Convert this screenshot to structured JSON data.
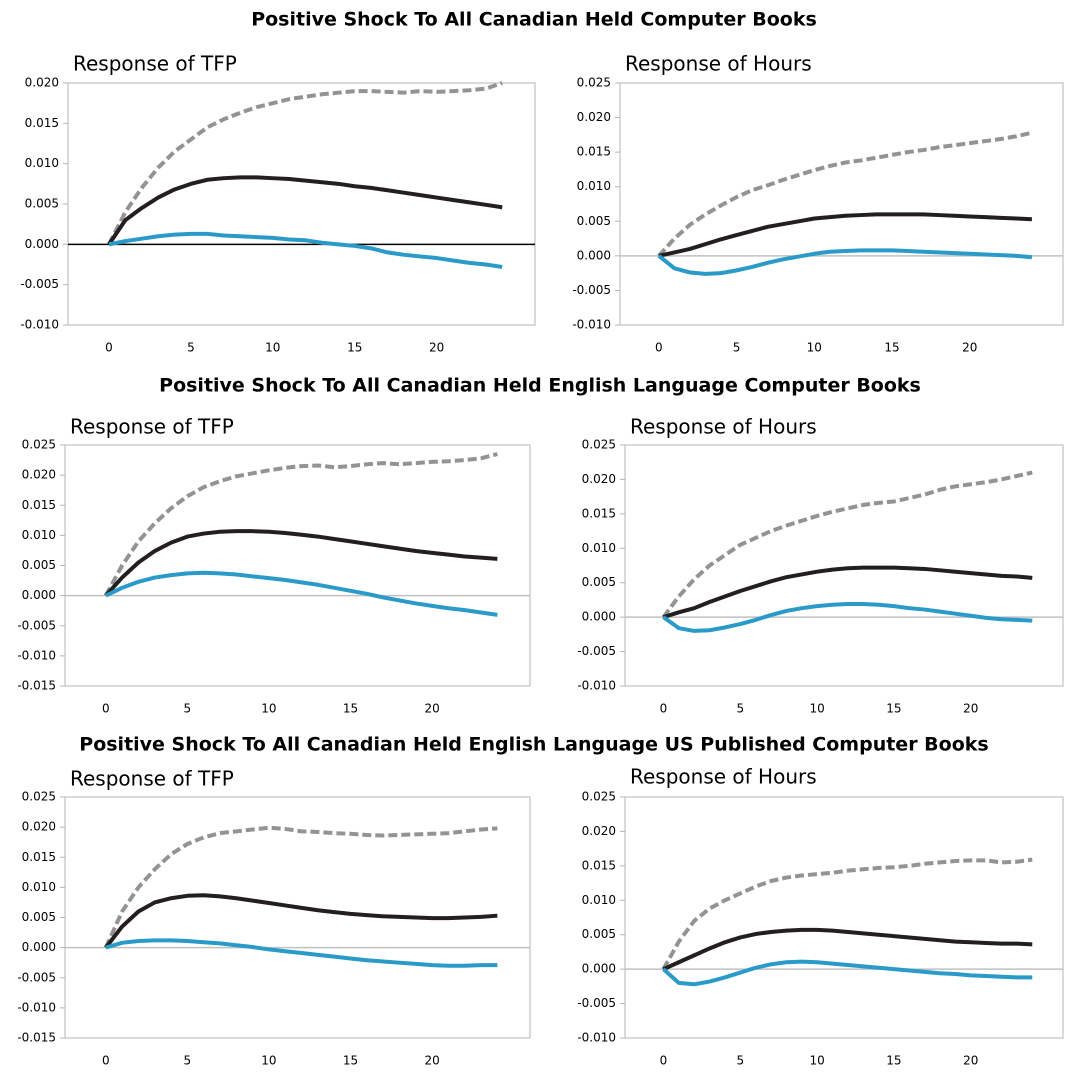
{
  "section_titles": [
    "Positive Shock To All Canadian Held Computer Books",
    "Positive Shock To All Canadian Held English Language Computer Books",
    "Positive Shock To All Canadian Held English Language US Published Computer Books"
  ],
  "chart_data": [
    {
      "type": "line",
      "title": "Response of TFP",
      "zero_line_color": "#000000",
      "x": [
        0,
        1,
        2,
        3,
        4,
        5,
        6,
        7,
        8,
        9,
        10,
        11,
        12,
        13,
        14,
        15,
        16,
        17,
        18,
        19,
        20,
        21,
        22,
        23,
        24
      ],
      "xlim": [
        -2.5,
        26
      ],
      "xticks": [
        0,
        5,
        10,
        15,
        20
      ],
      "ylim": [
        -0.01,
        0.02
      ],
      "yticks": [
        {
          "value": -0.01,
          "label": "-0.010"
        },
        {
          "value": -0.005,
          "label": "-0.005"
        },
        {
          "value": 0,
          "label": "0.000"
        },
        {
          "value": 0.005,
          "label": "0.005"
        },
        {
          "value": 0.01,
          "label": "0.010"
        },
        {
          "value": 0.015,
          "label": "0.015"
        },
        {
          "value": 0.02,
          "label": "0.020"
        }
      ],
      "series": [
        {
          "color": "#939393",
          "dashed": true,
          "values": [
            0,
            0.004,
            0.007,
            0.0095,
            0.0115,
            0.013,
            0.0145,
            0.0155,
            0.0163,
            0.017,
            0.0175,
            0.018,
            0.0183,
            0.0186,
            0.0188,
            0.019,
            0.019,
            0.0189,
            0.0188,
            0.019,
            0.0189,
            0.019,
            0.0191,
            0.0193,
            0.02
          ]
        },
        {
          "color": "#231f20",
          "values": [
            0,
            0.003,
            0.0045,
            0.0058,
            0.0068,
            0.0075,
            0.008,
            0.0082,
            0.0083,
            0.0083,
            0.0082,
            0.0081,
            0.0079,
            0.0077,
            0.0075,
            0.0072,
            0.007,
            0.0067,
            0.0064,
            0.0061,
            0.0058,
            0.0055,
            0.0052,
            0.0049,
            0.0046
          ]
        },
        {
          "color": "#2a9ac9",
          "values": [
            0,
            0.0004,
            0.0007,
            0.001,
            0.0012,
            0.0013,
            0.0013,
            0.0011,
            0.001,
            0.0009,
            0.0008,
            0.0006,
            0.0005,
            0.0002,
            0,
            -0.0002,
            -0.0005,
            -0.001,
            -0.0013,
            -0.0015,
            -0.0017,
            -0.002,
            -0.0023,
            -0.0025,
            -0.0028
          ]
        }
      ]
    },
    {
      "type": "line",
      "title": "Response of Hours",
      "zero_line_color": "#c0c0c0",
      "x": [
        0,
        1,
        2,
        3,
        4,
        5,
        6,
        7,
        8,
        9,
        10,
        11,
        12,
        13,
        14,
        15,
        16,
        17,
        18,
        19,
        20,
        21,
        22,
        23,
        24
      ],
      "xlim": [
        -2.5,
        26
      ],
      "xticks": [
        0,
        5,
        10,
        15,
        20
      ],
      "ylim": [
        -0.01,
        0.025
      ],
      "yticks": [
        {
          "value": -0.01,
          "label": "-0.010"
        },
        {
          "value": -0.005,
          "label": "-0.005"
        },
        {
          "value": 0,
          "label": "0.000"
        },
        {
          "value": 0.005,
          "label": "0.005"
        },
        {
          "value": 0.01,
          "label": "0.010"
        },
        {
          "value": 0.015,
          "label": "0.015"
        },
        {
          "value": 0.02,
          "label": "0.020"
        },
        {
          "value": 0.025,
          "label": "0.025"
        }
      ],
      "series": [
        {
          "color": "#939393",
          "dashed": true,
          "values": [
            0,
            0.0025,
            0.0045,
            0.006,
            0.0073,
            0.0085,
            0.0095,
            0.0102,
            0.011,
            0.0117,
            0.0124,
            0.013,
            0.0135,
            0.0138,
            0.0142,
            0.0146,
            0.015,
            0.0153,
            0.0157,
            0.016,
            0.0163,
            0.0166,
            0.0169,
            0.0173,
            0.0178
          ]
        },
        {
          "color": "#231f20",
          "values": [
            0,
            0.0005,
            0.001,
            0.0017,
            0.0024,
            0.003,
            0.0036,
            0.0042,
            0.0046,
            0.005,
            0.0054,
            0.0056,
            0.0058,
            0.0059,
            0.006,
            0.006,
            0.006,
            0.006,
            0.0059,
            0.0058,
            0.0057,
            0.0056,
            0.0055,
            0.0054,
            0.0053
          ]
        },
        {
          "color": "#2a9ac9",
          "values": [
            0,
            -0.0018,
            -0.0024,
            -0.0026,
            -0.0025,
            -0.0021,
            -0.0016,
            -0.001,
            -0.0005,
            -0.0001,
            0.0003,
            0.0006,
            0.0007,
            0.0008,
            0.0008,
            0.0008,
            0.0007,
            0.0006,
            0.0005,
            0.0004,
            0.0003,
            0.0002,
            0.0001,
            0,
            -0.0002
          ]
        }
      ]
    },
    {
      "type": "line",
      "title": "Response of TFP",
      "zero_line_color": "#c0c0c0",
      "x": [
        0,
        1,
        2,
        3,
        4,
        5,
        6,
        7,
        8,
        9,
        10,
        11,
        12,
        13,
        14,
        15,
        16,
        17,
        18,
        19,
        20,
        21,
        22,
        23,
        24
      ],
      "xlim": [
        -2.5,
        26
      ],
      "xticks": [
        0,
        5,
        10,
        15,
        20
      ],
      "ylim": [
        -0.015,
        0.025
      ],
      "yticks": [
        {
          "value": -0.015,
          "label": "-0.015"
        },
        {
          "value": -0.01,
          "label": "-0.010"
        },
        {
          "value": -0.005,
          "label": "-0.005"
        },
        {
          "value": 0,
          "label": "0.000"
        },
        {
          "value": 0.005,
          "label": "0.005"
        },
        {
          "value": 0.01,
          "label": "0.010"
        },
        {
          "value": 0.015,
          "label": "0.015"
        },
        {
          "value": 0.02,
          "label": "0.020"
        },
        {
          "value": 0.025,
          "label": "0.025"
        }
      ],
      "series": [
        {
          "color": "#939393",
          "dashed": true,
          "values": [
            0,
            0.005,
            0.009,
            0.012,
            0.0145,
            0.0165,
            0.018,
            0.019,
            0.0198,
            0.0203,
            0.0208,
            0.0212,
            0.0215,
            0.0216,
            0.0213,
            0.0215,
            0.0218,
            0.022,
            0.0218,
            0.022,
            0.0222,
            0.0223,
            0.0225,
            0.0228,
            0.0235
          ]
        },
        {
          "color": "#231f20",
          "values": [
            0,
            0.003,
            0.0055,
            0.0074,
            0.0088,
            0.0098,
            0.0103,
            0.0106,
            0.0107,
            0.0107,
            0.0106,
            0.0104,
            0.0101,
            0.0098,
            0.0094,
            0.009,
            0.0086,
            0.0082,
            0.0078,
            0.0074,
            0.0071,
            0.0068,
            0.0065,
            0.0063,
            0.0061
          ]
        },
        {
          "color": "#2a9ac9",
          "values": [
            0,
            0.0013,
            0.0023,
            0.003,
            0.0034,
            0.0037,
            0.0038,
            0.0037,
            0.0035,
            0.0032,
            0.0029,
            0.0026,
            0.0022,
            0.0018,
            0.0013,
            0.0008,
            0.0003,
            -0.0003,
            -0.0008,
            -0.0013,
            -0.0017,
            -0.0021,
            -0.0024,
            -0.0028,
            -0.0032
          ]
        }
      ]
    },
    {
      "type": "line",
      "title": "Response of Hours",
      "zero_line_color": "#c0c0c0",
      "x": [
        0,
        1,
        2,
        3,
        4,
        5,
        6,
        7,
        8,
        9,
        10,
        11,
        12,
        13,
        14,
        15,
        16,
        17,
        18,
        19,
        20,
        21,
        22,
        23,
        24
      ],
      "xlim": [
        -2.5,
        26
      ],
      "xticks": [
        0,
        5,
        10,
        15,
        20
      ],
      "ylim": [
        -0.01,
        0.025
      ],
      "yticks": [
        {
          "value": -0.01,
          "label": "-0.010"
        },
        {
          "value": -0.005,
          "label": "-0.005"
        },
        {
          "value": 0,
          "label": "0.000"
        },
        {
          "value": 0.005,
          "label": "0.005"
        },
        {
          "value": 0.01,
          "label": "0.010"
        },
        {
          "value": 0.015,
          "label": "0.015"
        },
        {
          "value": 0.02,
          "label": "0.020"
        },
        {
          "value": 0.025,
          "label": "0.025"
        }
      ],
      "series": [
        {
          "color": "#939393",
          "dashed": true,
          "values": [
            0,
            0.003,
            0.0055,
            0.0075,
            0.009,
            0.0105,
            0.0115,
            0.0125,
            0.0133,
            0.014,
            0.0147,
            0.0153,
            0.0158,
            0.0163,
            0.0166,
            0.0168,
            0.0173,
            0.0178,
            0.0185,
            0.019,
            0.0193,
            0.0196,
            0.02,
            0.0205,
            0.021
          ]
        },
        {
          "color": "#231f20",
          "values": [
            0,
            0.0007,
            0.0013,
            0.0022,
            0.003,
            0.0038,
            0.0045,
            0.0052,
            0.0058,
            0.0062,
            0.0066,
            0.0069,
            0.0071,
            0.0072,
            0.0072,
            0.0072,
            0.0071,
            0.007,
            0.0068,
            0.0066,
            0.0064,
            0.0062,
            0.006,
            0.0059,
            0.0057
          ]
        },
        {
          "color": "#2a9ac9",
          "values": [
            0,
            -0.0016,
            -0.002,
            -0.0019,
            -0.0015,
            -0.001,
            -0.0004,
            0.0003,
            0.0009,
            0.0013,
            0.0016,
            0.0018,
            0.0019,
            0.0019,
            0.0018,
            0.0016,
            0.0013,
            0.0011,
            0.0008,
            0.0005,
            0.0002,
            -0.0001,
            -0.0003,
            -0.0004,
            -0.0005
          ]
        }
      ]
    },
    {
      "type": "line",
      "title": "Response of TFP",
      "zero_line_color": "#c0c0c0",
      "x": [
        0,
        1,
        2,
        3,
        4,
        5,
        6,
        7,
        8,
        9,
        10,
        11,
        12,
        13,
        14,
        15,
        16,
        17,
        18,
        19,
        20,
        21,
        22,
        23,
        24
      ],
      "xlim": [
        -2.5,
        26
      ],
      "xticks": [
        0,
        5,
        10,
        15,
        20
      ],
      "ylim": [
        -0.015,
        0.025
      ],
      "yticks": [
        {
          "value": -0.015,
          "label": "-0.015"
        },
        {
          "value": -0.01,
          "label": "-0.010"
        },
        {
          "value": -0.005,
          "label": "-0.005"
        },
        {
          "value": 0,
          "label": "0.000"
        },
        {
          "value": 0.005,
          "label": "0.005"
        },
        {
          "value": 0.01,
          "label": "0.010"
        },
        {
          "value": 0.015,
          "label": "0.015"
        },
        {
          "value": 0.02,
          "label": "0.020"
        },
        {
          "value": 0.025,
          "label": "0.025"
        }
      ],
      "series": [
        {
          "color": "#939393",
          "dashed": true,
          "values": [
            0,
            0.006,
            0.01,
            0.013,
            0.0155,
            0.0172,
            0.0183,
            0.019,
            0.0193,
            0.0196,
            0.0199,
            0.0197,
            0.0193,
            0.0192,
            0.019,
            0.0189,
            0.0187,
            0.0186,
            0.0187,
            0.0188,
            0.0189,
            0.019,
            0.0193,
            0.0196,
            0.0198
          ]
        },
        {
          "color": "#231f20",
          "values": [
            0,
            0.0035,
            0.006,
            0.0075,
            0.0082,
            0.0086,
            0.0087,
            0.0085,
            0.0082,
            0.0078,
            0.0074,
            0.007,
            0.0066,
            0.0062,
            0.0059,
            0.0056,
            0.0054,
            0.0052,
            0.0051,
            0.005,
            0.0049,
            0.0049,
            0.005,
            0.0051,
            0.0053
          ]
        },
        {
          "color": "#2a9ac9",
          "values": [
            0,
            0.0008,
            0.0011,
            0.0012,
            0.0012,
            0.0011,
            0.0009,
            0.0007,
            0.0004,
            0.0001,
            -0.0003,
            -0.0006,
            -0.0009,
            -0.0012,
            -0.0015,
            -0.0018,
            -0.0021,
            -0.0023,
            -0.0025,
            -0.0027,
            -0.0029,
            -0.003,
            -0.003,
            -0.0029,
            -0.0029
          ]
        }
      ]
    },
    {
      "type": "line",
      "title": "Response of Hours",
      "zero_line_color": "#c0c0c0",
      "x": [
        0,
        1,
        2,
        3,
        4,
        5,
        6,
        7,
        8,
        9,
        10,
        11,
        12,
        13,
        14,
        15,
        16,
        17,
        18,
        19,
        20,
        21,
        22,
        23,
        24
      ],
      "xlim": [
        -2.5,
        26
      ],
      "xticks": [
        0,
        5,
        10,
        15,
        20
      ],
      "ylim": [
        -0.01,
        0.025
      ],
      "yticks": [
        {
          "value": -0.01,
          "label": "-0.010"
        },
        {
          "value": -0.005,
          "label": "-0.005"
        },
        {
          "value": 0,
          "label": "0.000"
        },
        {
          "value": 0.005,
          "label": "0.005"
        },
        {
          "value": 0.01,
          "label": "0.010"
        },
        {
          "value": 0.015,
          "label": "0.015"
        },
        {
          "value": 0.02,
          "label": "0.020"
        },
        {
          "value": 0.025,
          "label": "0.025"
        }
      ],
      "series": [
        {
          "color": "#939393",
          "dashed": true,
          "values": [
            0,
            0.004,
            0.007,
            0.0088,
            0.01,
            0.011,
            0.012,
            0.0128,
            0.0133,
            0.0136,
            0.0138,
            0.014,
            0.0143,
            0.0145,
            0.0147,
            0.0148,
            0.015,
            0.0153,
            0.0155,
            0.0157,
            0.0158,
            0.0158,
            0.0155,
            0.0156,
            0.0159
          ]
        },
        {
          "color": "#231f20",
          "values": [
            0,
            0.001,
            0.002,
            0.003,
            0.0039,
            0.0046,
            0.0051,
            0.0054,
            0.0056,
            0.0057,
            0.0057,
            0.0056,
            0.0054,
            0.0052,
            0.005,
            0.0048,
            0.0046,
            0.0044,
            0.0042,
            0.004,
            0.0039,
            0.0038,
            0.0037,
            0.0037,
            0.0036
          ]
        },
        {
          "color": "#2a9ac9",
          "values": [
            0,
            -0.002,
            -0.0022,
            -0.0018,
            -0.0012,
            -0.0005,
            0.0002,
            0.0007,
            0.001,
            0.0011,
            0.001,
            0.0008,
            0.0006,
            0.0004,
            0.0002,
            0,
            -0.0002,
            -0.0004,
            -0.0006,
            -0.0007,
            -0.0009,
            -0.001,
            -0.0011,
            -0.0012,
            -0.0012
          ]
        }
      ]
    }
  ]
}
